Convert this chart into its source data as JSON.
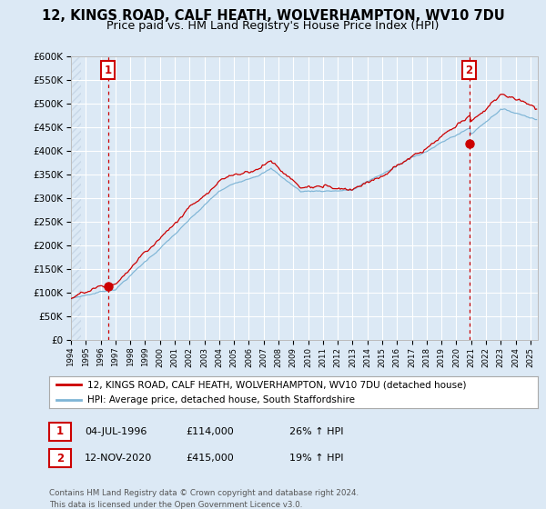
{
  "title1": "12, KINGS ROAD, CALF HEATH, WOLVERHAMPTON, WV10 7DU",
  "title2": "Price paid vs. HM Land Registry's House Price Index (HPI)",
  "legend_line1": "12, KINGS ROAD, CALF HEATH, WOLVERHAMPTON, WV10 7DU (detached house)",
  "legend_line2": "HPI: Average price, detached house, South Staffordshire",
  "ann1_label": "1",
  "ann1_date": "04-JUL-1996",
  "ann1_price": "£114,000",
  "ann1_hpi": "26% ↑ HPI",
  "ann2_label": "2",
  "ann2_date": "12-NOV-2020",
  "ann2_price": "£415,000",
  "ann2_hpi": "19% ↑ HPI",
  "copyright": "Contains HM Land Registry data © Crown copyright and database right 2024.\nThis data is licensed under the Open Government Licence v3.0.",
  "sale1_year": 1996.5,
  "sale1_price": 114000,
  "sale2_year": 2020.87,
  "sale2_price": 415000,
  "ylim_max": 600000,
  "xlim_start": 1994.0,
  "xlim_end": 2025.5,
  "color_red": "#cc0000",
  "color_blue": "#7eb5d6",
  "color_bg": "#dce9f5",
  "color_grid": "#ffffff",
  "color_hatch": "#c8d8e8"
}
